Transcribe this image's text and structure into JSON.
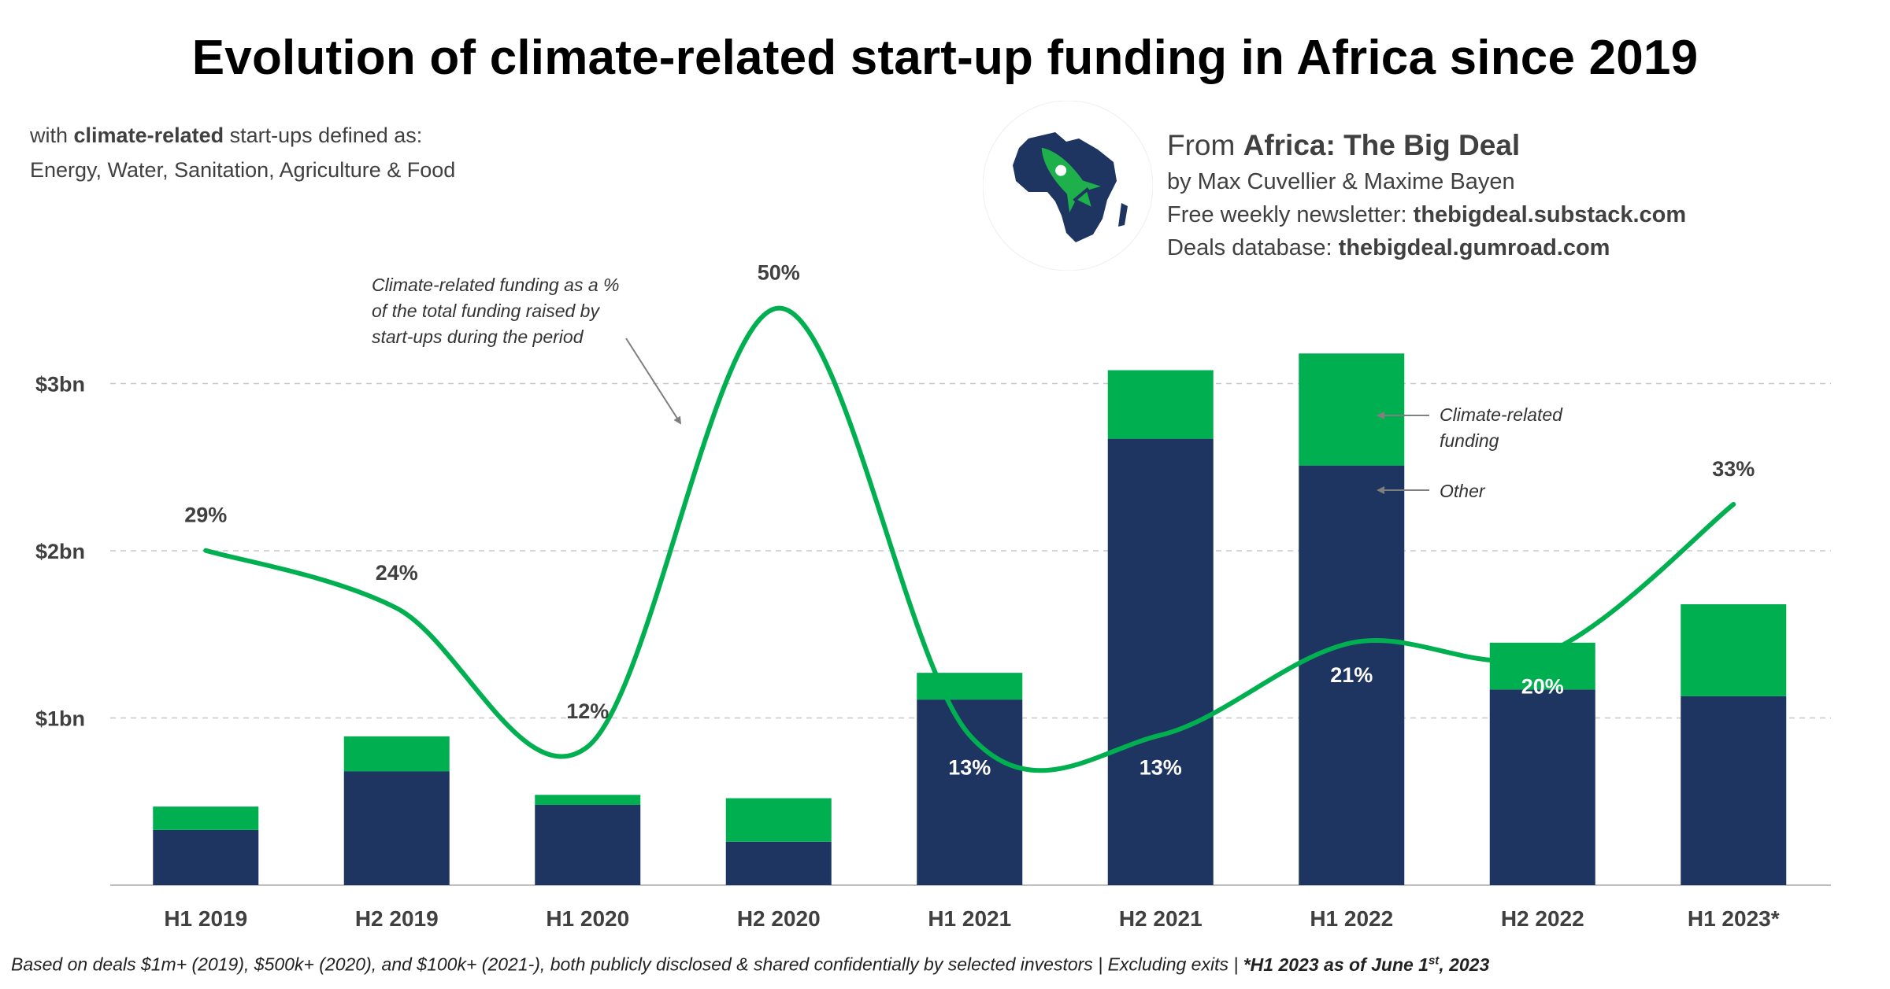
{
  "header": {
    "title": "Evolution of climate-related start-up funding in Africa since 2019",
    "subtitle_prefix": "with ",
    "subtitle_bold": "climate-related",
    "subtitle_suffix": " start-ups defined as:",
    "subtitle_line2": "Energy, Water, Sanitation, Agriculture & Food"
  },
  "source": {
    "from_prefix": "From ",
    "from_name": "Africa: The Big Deal",
    "authors": "by Max Cuvellier & Maxime Bayen",
    "newsletter_label": "Free weekly newsletter: ",
    "newsletter_url": "thebigdeal.substack.com",
    "database_label": "Deals database: ",
    "database_url": "thebigdeal.gumroad.com"
  },
  "logo": {
    "icon": "africa-rocket-icon",
    "map_color": "#1f3561",
    "rocket_color": "#1db04b"
  },
  "footnote": {
    "main": "Based on deals $1m+ (2019), $500k+ (2020), and $100k+ (2021-), both publicly disclosed & shared confidentially by selected investors | Excluding exits | ",
    "bold": "*H1 2023 as of June 1",
    "sup": "st",
    "tail": ", 2023"
  },
  "chart_data": {
    "type": "bar",
    "stacked": true,
    "categories": [
      "H1 2019",
      "H2 2019",
      "H1 2020",
      "H2 2020",
      "H1 2021",
      "H2 2021",
      "H1 2022",
      "H2 2022",
      "H1 2023*"
    ],
    "series": [
      {
        "name": "Other",
        "color": "#1f3561",
        "values": [
          0.33,
          0.68,
          0.48,
          0.26,
          1.11,
          2.67,
          2.51,
          1.17,
          1.13
        ]
      },
      {
        "name": "Climate-related funding",
        "color": "#00b050",
        "values": [
          0.14,
          0.21,
          0.06,
          0.26,
          0.16,
          0.41,
          0.67,
          0.28,
          0.55
        ]
      }
    ],
    "line": {
      "color": "#00b050",
      "values": [
        29,
        24,
        12,
        50,
        13,
        13,
        21,
        20,
        33
      ],
      "labels": [
        "29%",
        "24%",
        "12%",
        "50%",
        "13%",
        "13%",
        "21%",
        "20%",
        "33%"
      ]
    },
    "yticks": [
      "$1bn",
      "$2bn",
      "$3bn"
    ],
    "ytick_values": [
      1,
      2,
      3
    ],
    "ylim": [
      0,
      3.6
    ],
    "grid": true,
    "annotations": {
      "line_note": [
        "Climate-related funding as a %",
        "of the total funding raised by",
        "start-ups during the period"
      ],
      "climate_note": [
        "Climate-related",
        "funding"
      ],
      "other_note": "Other"
    }
  }
}
